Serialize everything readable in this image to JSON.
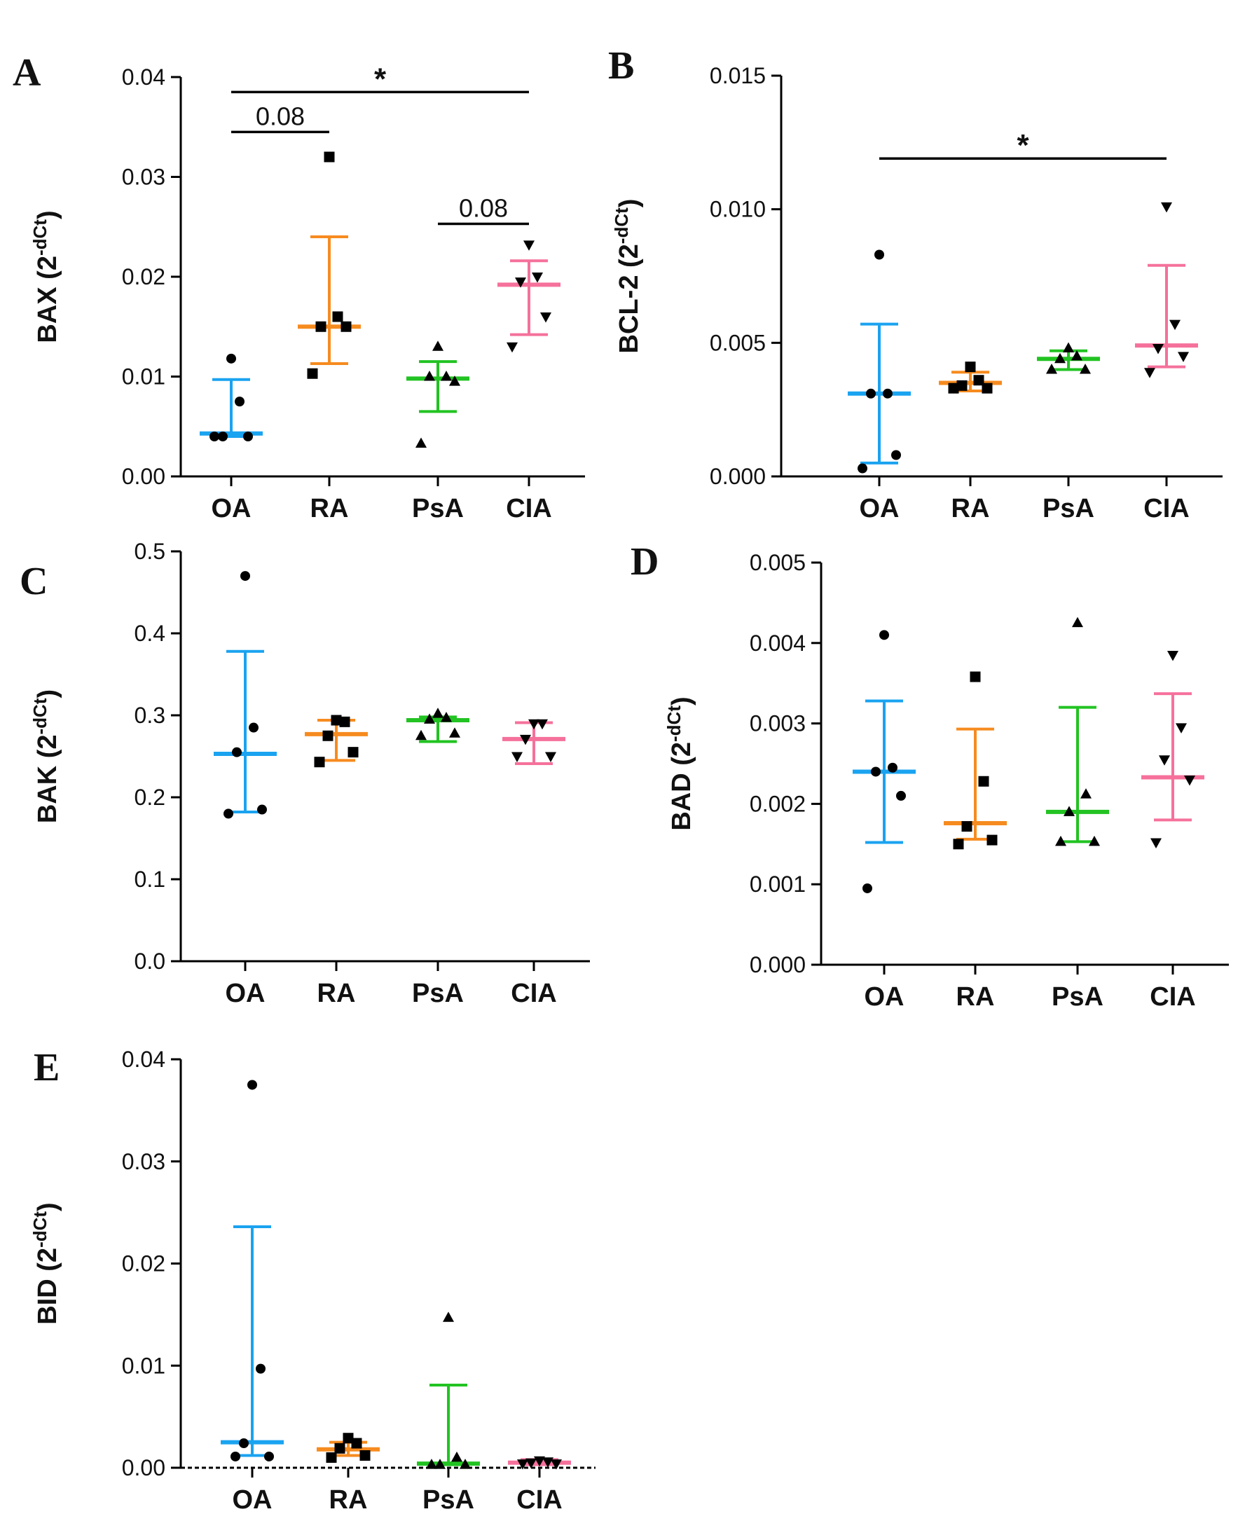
{
  "figure": {
    "title": ""
  },
  "colors": {
    "OA": "#1aa3f0",
    "RA": "#f68b1f",
    "PsA": "#22c322",
    "CIA": "#f5719b",
    "axis": "#000000",
    "point": "#000000"
  },
  "markers": {
    "OA": "circle",
    "RA": "square",
    "PsA": "triangle-up",
    "CIA": "triangle-down"
  },
  "chart_data": [
    {
      "panel": "A",
      "type": "scatter",
      "ylabel": "BAX (2",
      "ylabel_sup": "-dCt",
      "ylabel_close": ")",
      "categories": [
        "OA",
        "RA",
        "PsA",
        "CIA"
      ],
      "ylim": [
        0,
        0.04
      ],
      "yticks": [
        0,
        0.01,
        0.02,
        0.03,
        0.04
      ],
      "ytick_labels": [
        "0.00",
        "0.01",
        "0.02",
        "0.03",
        "0.04"
      ],
      "series": [
        {
          "name": "OA",
          "points": [
            0.0118,
            0.0075,
            0.004,
            0.004,
            0.004
          ],
          "median": 0.0043,
          "err": [
            0.0097,
            0.004
          ]
        },
        {
          "name": "RA",
          "points": [
            0.032,
            0.016,
            0.015,
            0.015,
            0.0103
          ],
          "median": 0.015,
          "err": [
            0.024,
            0.0113
          ]
        },
        {
          "name": "PsA",
          "points": [
            0.013,
            0.01,
            0.01,
            0.0095,
            0.0033
          ],
          "median": 0.0098,
          "err": [
            0.0115,
            0.0065
          ]
        },
        {
          "name": "CIA",
          "points": [
            0.0232,
            0.02,
            0.0195,
            0.016,
            0.013
          ],
          "median": 0.0192,
          "err": [
            0.0216,
            0.0142
          ]
        }
      ],
      "significance": [
        {
          "from": "OA",
          "to": "CIA",
          "y": 0.0385,
          "label": "*"
        },
        {
          "from": "OA",
          "to": "RA",
          "y": 0.0345,
          "label": "0.08"
        },
        {
          "from": "PsA",
          "to": "CIA",
          "y": 0.0253,
          "label": "0.08"
        }
      ]
    },
    {
      "panel": "B",
      "type": "scatter",
      "ylabel": "BCL-2 (2",
      "ylabel_sup": "-dCt",
      "ylabel_close": ")",
      "categories": [
        "OA",
        "RA",
        "PsA",
        "CIA"
      ],
      "ylim": [
        0,
        0.015
      ],
      "yticks": [
        0,
        0.005,
        0.01,
        0.015
      ],
      "ytick_labels": [
        "0.000",
        "0.005",
        "0.010",
        "0.015"
      ],
      "series": [
        {
          "name": "OA",
          "points": [
            0.0083,
            0.0031,
            0.0031,
            0.0008,
            0.0003
          ],
          "median": 0.0031,
          "err": [
            0.0057,
            0.0005
          ]
        },
        {
          "name": "RA",
          "points": [
            0.0041,
            0.0036,
            0.0034,
            0.0033,
            0.0033
          ],
          "median": 0.0035,
          "err": [
            0.0039,
            0.0032
          ]
        },
        {
          "name": "PsA",
          "points": [
            0.0048,
            0.0045,
            0.0044,
            0.004,
            0.004
          ],
          "median": 0.0044,
          "err": [
            0.0047,
            0.004
          ]
        },
        {
          "name": "CIA",
          "points": [
            0.0101,
            0.0057,
            0.0048,
            0.0045,
            0.0039
          ],
          "median": 0.0049,
          "err": [
            0.0079,
            0.0041
          ]
        }
      ],
      "significance": [
        {
          "from": "OA",
          "to": "CIA",
          "y": 0.0119,
          "label": "*"
        }
      ]
    },
    {
      "panel": "C",
      "type": "scatter",
      "ylabel": "BAK (2",
      "ylabel_sup": "-dCt",
      "ylabel_close": ")",
      "categories": [
        "OA",
        "RA",
        "PsA",
        "CIA"
      ],
      "ylim": [
        0,
        0.5
      ],
      "yticks": [
        0,
        0.1,
        0.2,
        0.3,
        0.4,
        0.5
      ],
      "ytick_labels": [
        "0.0",
        "0.1",
        "0.2",
        "0.3",
        "0.4",
        "0.5"
      ],
      "series": [
        {
          "name": "OA",
          "points": [
            0.47,
            0.285,
            0.255,
            0.185,
            0.18
          ],
          "median": 0.253,
          "err": [
            0.378,
            0.182
          ]
        },
        {
          "name": "RA",
          "points": [
            0.294,
            0.292,
            0.275,
            0.255,
            0.243
          ],
          "median": 0.277,
          "err": [
            0.294,
            0.245
          ]
        },
        {
          "name": "PsA",
          "points": [
            0.302,
            0.297,
            0.295,
            0.278,
            0.275
          ],
          "median": 0.294,
          "err": [
            0.298,
            0.268
          ]
        },
        {
          "name": "CIA",
          "points": [
            0.29,
            0.29,
            0.271,
            0.25,
            0.25
          ],
          "median": 0.271,
          "err": [
            0.291,
            0.241
          ]
        }
      ],
      "significance": []
    },
    {
      "panel": "D",
      "type": "scatter",
      "ylabel": "BAD (2",
      "ylabel_sup": "-dCt",
      "ylabel_close": ")",
      "categories": [
        "OA",
        "RA",
        "PsA",
        "CIA"
      ],
      "ylim": [
        0,
        0.005
      ],
      "yticks": [
        0,
        0.001,
        0.002,
        0.003,
        0.004,
        0.005
      ],
      "ytick_labels": [
        "0.000",
        "0.001",
        "0.002",
        "0.003",
        "0.004",
        "0.005"
      ],
      "series": [
        {
          "name": "OA",
          "points": [
            0.0041,
            0.00245,
            0.0024,
            0.0021,
            0.00095
          ],
          "median": 0.0024,
          "err": [
            0.00328,
            0.00152
          ]
        },
        {
          "name": "RA",
          "points": [
            0.00358,
            0.00228,
            0.00172,
            0.00155,
            0.0015
          ],
          "median": 0.00176,
          "err": [
            0.00293,
            0.00156
          ]
        },
        {
          "name": "PsA",
          "points": [
            0.00425,
            0.00212,
            0.0019,
            0.00153,
            0.00153
          ],
          "median": 0.0019,
          "err": [
            0.0032,
            0.00153
          ]
        },
        {
          "name": "CIA",
          "points": [
            0.00385,
            0.00295,
            0.00255,
            0.0023,
            0.00152
          ],
          "median": 0.00233,
          "err": [
            0.00337,
            0.0018
          ]
        }
      ],
      "significance": []
    },
    {
      "panel": "E",
      "type": "scatter",
      "ylabel": "BID (2",
      "ylabel_sup": "-dCt",
      "ylabel_close": ")",
      "categories": [
        "OA",
        "RA",
        "PsA",
        "CIA"
      ],
      "ylim": [
        0,
        0.04
      ],
      "yticks": [
        0,
        0.01,
        0.02,
        0.03,
        0.04
      ],
      "ytick_labels": [
        "0.00",
        "0.01",
        "0.02",
        "0.03",
        "0.04"
      ],
      "series": [
        {
          "name": "OA",
          "points": [
            0.0375,
            0.0097,
            0.0024,
            0.0011,
            0.0011
          ],
          "median": 0.0025,
          "err": [
            0.0236,
            0.0012
          ]
        },
        {
          "name": "RA",
          "points": [
            0.0029,
            0.0024,
            0.0019,
            0.0012,
            0.001
          ],
          "median": 0.0018,
          "err": [
            0.0025,
            0.0012
          ]
        },
        {
          "name": "PsA",
          "points": [
            0.0147,
            0.001,
            0.0003,
            0.0003,
            0.0003
          ],
          "median": 0.0004,
          "err": [
            0.0081,
            0.0003
          ]
        },
        {
          "name": "CIA",
          "points": [
            0.0007,
            0.0006,
            0.0005,
            0.0004,
            0.0004
          ],
          "median": 0.0005,
          "err": [
            0.0008,
            0.0003
          ]
        }
      ],
      "significance": []
    }
  ]
}
